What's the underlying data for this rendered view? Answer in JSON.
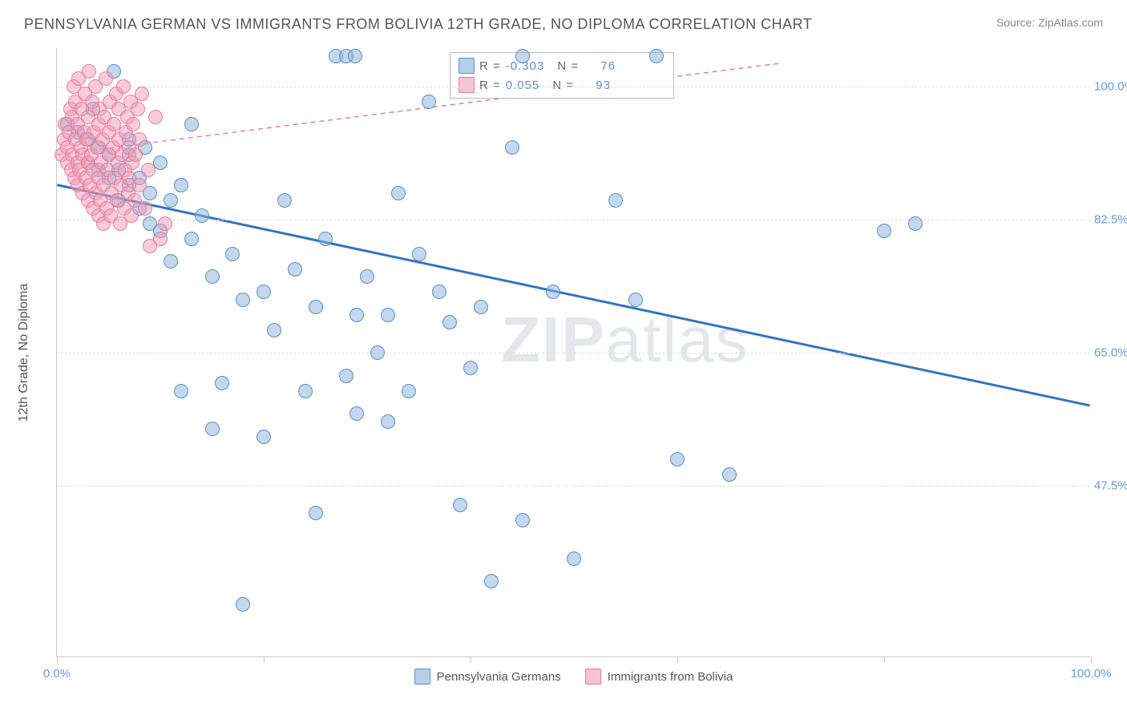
{
  "header": {
    "title": "PENNSYLVANIA GERMAN VS IMMIGRANTS FROM BOLIVIA 12TH GRADE, NO DIPLOMA CORRELATION CHART",
    "source_label": "Source:",
    "source_value": "ZipAtlas.com"
  },
  "chart": {
    "type": "scatter",
    "ylabel": "12th Grade, No Diploma",
    "xlim": [
      0,
      100
    ],
    "ylim": [
      25,
      105
    ],
    "x_ticks": [
      0,
      20,
      40,
      60,
      80,
      100
    ],
    "x_tick_labels": {
      "0": "0.0%",
      "100": "100.0%"
    },
    "y_gridlines": [
      47.5,
      65.0,
      82.5,
      100.0
    ],
    "y_tick_labels": [
      "47.5%",
      "65.0%",
      "82.5%",
      "100.0%"
    ],
    "background_color": "#ffffff",
    "grid_color": "#dddddd",
    "axis_color": "#cccccc",
    "watermark": "ZIPatlas",
    "series": [
      {
        "name": "Pennsylvania Germans",
        "color_fill": "rgba(135,175,220,0.5)",
        "color_stroke": "#5a8fc8",
        "r_value": "-0.303",
        "n_value": "76",
        "trendline": {
          "x1": 0,
          "y1": 87,
          "x2": 100,
          "y2": 58,
          "color": "#2f74c4",
          "width": 3,
          "dash": "none"
        },
        "points": [
          [
            1,
            95
          ],
          [
            2,
            94
          ],
          [
            3,
            93
          ],
          [
            3,
            90
          ],
          [
            3.5,
            97
          ],
          [
            4,
            92
          ],
          [
            4,
            89
          ],
          [
            5,
            91
          ],
          [
            5,
            88
          ],
          [
            5.5,
            102
          ],
          [
            6,
            89
          ],
          [
            6,
            85
          ],
          [
            7,
            93
          ],
          [
            7,
            91
          ],
          [
            7,
            87
          ],
          [
            8,
            88
          ],
          [
            8,
            84
          ],
          [
            8.5,
            92
          ],
          [
            9,
            86
          ],
          [
            9,
            82
          ],
          [
            10,
            90
          ],
          [
            10,
            81
          ],
          [
            11,
            85
          ],
          [
            11,
            77
          ],
          [
            12,
            87
          ],
          [
            12,
            60
          ],
          [
            13,
            80
          ],
          [
            13,
            95
          ],
          [
            14,
            83
          ],
          [
            15,
            75
          ],
          [
            15,
            55
          ],
          [
            16,
            61
          ],
          [
            17,
            78
          ],
          [
            18,
            72
          ],
          [
            18,
            32
          ],
          [
            20,
            73
          ],
          [
            20,
            54
          ],
          [
            21,
            68
          ],
          [
            22,
            85
          ],
          [
            23,
            76
          ],
          [
            24,
            60
          ],
          [
            25,
            71
          ],
          [
            25,
            44
          ],
          [
            26,
            80
          ],
          [
            27,
            104
          ],
          [
            28,
            104
          ],
          [
            28.8,
            104
          ],
          [
            28,
            62
          ],
          [
            29,
            57
          ],
          [
            29,
            70
          ],
          [
            30,
            75
          ],
          [
            31,
            65
          ],
          [
            32,
            70
          ],
          [
            32,
            56
          ],
          [
            33,
            86
          ],
          [
            34,
            60
          ],
          [
            35,
            78
          ],
          [
            36,
            98
          ],
          [
            37,
            73
          ],
          [
            38,
            69
          ],
          [
            39,
            45
          ],
          [
            40,
            63
          ],
          [
            41,
            71
          ],
          [
            42,
            35
          ],
          [
            44,
            92
          ],
          [
            45,
            104
          ],
          [
            45,
            43
          ],
          [
            48,
            73
          ],
          [
            50,
            38
          ],
          [
            54,
            85
          ],
          [
            56,
            72
          ],
          [
            58,
            104
          ],
          [
            60,
            51
          ],
          [
            65,
            49
          ],
          [
            80,
            81
          ],
          [
            83,
            82
          ]
        ]
      },
      {
        "name": "Immigrants from Bolivia",
        "color_fill": "rgba(240,155,180,0.5)",
        "color_stroke": "#e87ba0",
        "r_value": "0.055",
        "n_value": "93",
        "trendline": {
          "x1": 0,
          "y1": 91,
          "x2": 70,
          "y2": 103,
          "color": "#e87ba0",
          "width": 1.5,
          "dash": "6,5"
        },
        "points": [
          [
            0.5,
            91
          ],
          [
            0.7,
            93
          ],
          [
            0.8,
            95
          ],
          [
            1,
            90
          ],
          [
            1,
            92
          ],
          [
            1.2,
            94
          ],
          [
            1.3,
            97
          ],
          [
            1.4,
            89
          ],
          [
            1.5,
            91
          ],
          [
            1.5,
            96
          ],
          [
            1.6,
            100
          ],
          [
            1.7,
            88
          ],
          [
            1.8,
            93
          ],
          [
            1.8,
            98
          ],
          [
            2,
            87
          ],
          [
            2,
            90
          ],
          [
            2,
            95
          ],
          [
            2.1,
            101
          ],
          [
            2.2,
            89
          ],
          [
            2.3,
            92
          ],
          [
            2.4,
            97
          ],
          [
            2.5,
            86
          ],
          [
            2.5,
            91
          ],
          [
            2.6,
            94
          ],
          [
            2.7,
            99
          ],
          [
            2.8,
            88
          ],
          [
            2.9,
            93
          ],
          [
            3,
            85
          ],
          [
            3,
            90
          ],
          [
            3,
            96
          ],
          [
            3.1,
            102
          ],
          [
            3.2,
            87
          ],
          [
            3.3,
            91
          ],
          [
            3.4,
            98
          ],
          [
            3.5,
            84
          ],
          [
            3.5,
            89
          ],
          [
            3.6,
            94
          ],
          [
            3.7,
            100
          ],
          [
            3.8,
            86
          ],
          [
            3.9,
            92
          ],
          [
            4,
            83
          ],
          [
            4,
            88
          ],
          [
            4,
            95
          ],
          [
            4.1,
            97
          ],
          [
            4.2,
            85
          ],
          [
            4.3,
            90
          ],
          [
            4.4,
            93
          ],
          [
            4.5,
            82
          ],
          [
            4.5,
            87
          ],
          [
            4.6,
            96
          ],
          [
            4.7,
            101
          ],
          [
            4.8,
            84
          ],
          [
            4.9,
            89
          ],
          [
            5,
            91
          ],
          [
            5,
            94
          ],
          [
            5.1,
            98
          ],
          [
            5.2,
            83
          ],
          [
            5.3,
            86
          ],
          [
            5.4,
            92
          ],
          [
            5.5,
            95
          ],
          [
            5.6,
            88
          ],
          [
            5.7,
            99
          ],
          [
            5.8,
            85
          ],
          [
            5.9,
            90
          ],
          [
            6,
            93
          ],
          [
            6,
            97
          ],
          [
            6.1,
            82
          ],
          [
            6.2,
            87
          ],
          [
            6.3,
            91
          ],
          [
            6.4,
            100
          ],
          [
            6.5,
            84
          ],
          [
            6.6,
            89
          ],
          [
            6.7,
            94
          ],
          [
            6.8,
            96
          ],
          [
            6.9,
            86
          ],
          [
            7,
            88
          ],
          [
            7,
            92
          ],
          [
            7.1,
            98
          ],
          [
            7.2,
            83
          ],
          [
            7.3,
            90
          ],
          [
            7.4,
            95
          ],
          [
            7.5,
            85
          ],
          [
            7.6,
            91
          ],
          [
            7.8,
            97
          ],
          [
            8,
            87
          ],
          [
            8,
            93
          ],
          [
            8.2,
            99
          ],
          [
            8.5,
            84
          ],
          [
            8.8,
            89
          ],
          [
            9,
            79
          ],
          [
            9.5,
            96
          ],
          [
            10,
            80
          ],
          [
            10.5,
            82
          ]
        ]
      }
    ],
    "stats_legend": {
      "r_label": "R =",
      "n_label": "N ="
    },
    "bottom_legend": [
      {
        "swatch": "blue",
        "label": "Pennsylvania Germans"
      },
      {
        "swatch": "pink",
        "label": "Immigrants from Bolivia"
      }
    ]
  }
}
